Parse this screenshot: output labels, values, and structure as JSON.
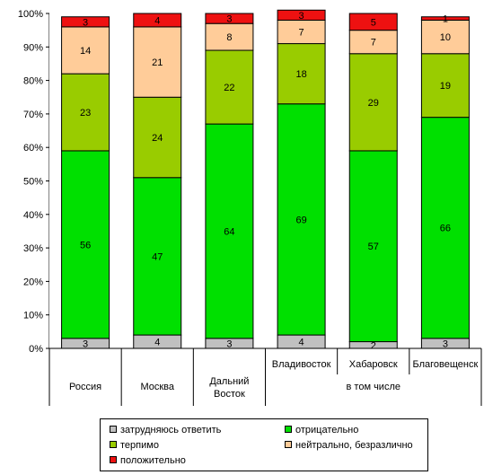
{
  "chart_data": {
    "type": "bar",
    "stacked": true,
    "percent": true,
    "categories": [
      "Россия",
      "Москва",
      "Дальний Восток",
      "Владивосток",
      "Хабаровск",
      "Благовещенск"
    ],
    "category_group_label": "в том числе",
    "series": [
      {
        "name": "затрудняюсь ответить",
        "color": "#c0c0c0",
        "values": [
          3,
          4,
          3,
          4,
          2,
          3
        ]
      },
      {
        "name": "отрицательно",
        "color": "#00e000",
        "values": [
          56,
          47,
          64,
          69,
          57,
          66
        ]
      },
      {
        "name": "терпимо",
        "color": "#99cc00",
        "values": [
          23,
          24,
          22,
          18,
          29,
          19
        ]
      },
      {
        "name": "нейтрально, безразлично",
        "color": "#ffcc99",
        "values": [
          14,
          21,
          8,
          7,
          7,
          10
        ]
      },
      {
        "name": "положительно",
        "color": "#ee1111",
        "values": [
          3,
          4,
          3,
          3,
          5,
          1
        ]
      }
    ],
    "y_ticks": [
      "0%",
      "10%",
      "20%",
      "30%",
      "40%",
      "50%",
      "60%",
      "70%",
      "80%",
      "90%",
      "100%"
    ],
    "ylim": [
      0,
      100
    ],
    "legend_position": "bottom",
    "grid": false,
    "plot_background": "#ffffff"
  }
}
